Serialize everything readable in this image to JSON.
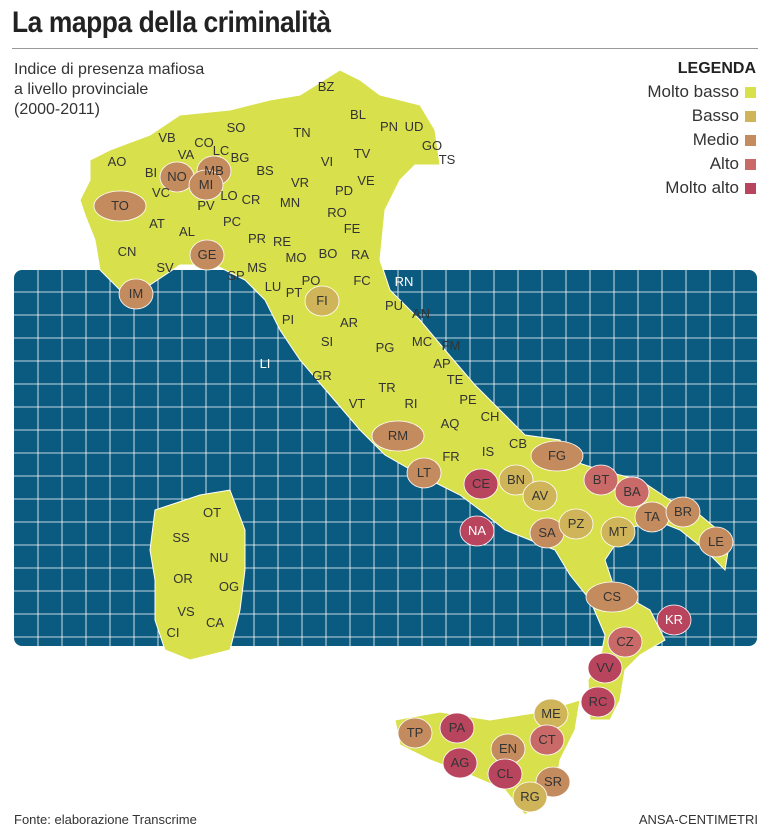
{
  "title": "La mappa della criminalità",
  "subtitle": [
    "Indice di presenza mafiosa",
    "a livello provinciale",
    "(2000-2011)"
  ],
  "legend": {
    "title": "LEGENDA",
    "items": [
      {
        "label": "Molto basso",
        "color": "#d8e04c"
      },
      {
        "label": "Basso",
        "color": "#d0b45a"
      },
      {
        "label": "Medio",
        "color": "#c48c5e"
      },
      {
        "label": "Alto",
        "color": "#c96a68"
      },
      {
        "label": "Molto alto",
        "color": "#b8445e"
      }
    ]
  },
  "colors": {
    "sea": "#0b5b80",
    "grid": "#ffffff",
    "land": "#d8e04c",
    "border": "#ffffff"
  },
  "provinces": [
    {
      "code": "BZ",
      "level": 0
    },
    {
      "code": "BL",
      "level": 0
    },
    {
      "code": "TN",
      "level": 0
    },
    {
      "code": "PN",
      "level": 0
    },
    {
      "code": "UD",
      "level": 0
    },
    {
      "code": "GO",
      "level": 0
    },
    {
      "code": "TS",
      "level": 0
    },
    {
      "code": "SO",
      "level": 0
    },
    {
      "code": "VB",
      "level": 0
    },
    {
      "code": "CO",
      "level": 0
    },
    {
      "code": "LC",
      "level": 0
    },
    {
      "code": "BG",
      "level": 0
    },
    {
      "code": "BS",
      "level": 0
    },
    {
      "code": "VI",
      "level": 0
    },
    {
      "code": "TV",
      "level": 0
    },
    {
      "code": "AO",
      "level": 0
    },
    {
      "code": "BI",
      "level": 0
    },
    {
      "code": "VA",
      "level": 0
    },
    {
      "code": "NO",
      "level": 2
    },
    {
      "code": "MB",
      "level": 2
    },
    {
      "code": "MI",
      "level": 2
    },
    {
      "code": "VR",
      "level": 0
    },
    {
      "code": "PD",
      "level": 0
    },
    {
      "code": "VE",
      "level": 0
    },
    {
      "code": "TO",
      "level": 2
    },
    {
      "code": "VC",
      "level": 0
    },
    {
      "code": "PV",
      "level": 0
    },
    {
      "code": "LO",
      "level": 0
    },
    {
      "code": "CR",
      "level": 0
    },
    {
      "code": "MN",
      "level": 0
    },
    {
      "code": "RO",
      "level": 0
    },
    {
      "code": "AT",
      "level": 0
    },
    {
      "code": "AL",
      "level": 0
    },
    {
      "code": "PC",
      "level": 0
    },
    {
      "code": "PR",
      "level": 0
    },
    {
      "code": "RE",
      "level": 0
    },
    {
      "code": "MO",
      "level": 0
    },
    {
      "code": "BO",
      "level": 0
    },
    {
      "code": "FE",
      "level": 0
    },
    {
      "code": "RA",
      "level": 0
    },
    {
      "code": "CN",
      "level": 0
    },
    {
      "code": "GE",
      "level": 2
    },
    {
      "code": "SV",
      "level": 0
    },
    {
      "code": "SP",
      "level": 0
    },
    {
      "code": "IM",
      "level": 2
    },
    {
      "code": "MS",
      "level": 0
    },
    {
      "code": "LU",
      "level": 0
    },
    {
      "code": "PT",
      "level": 0
    },
    {
      "code": "PO",
      "level": 0
    },
    {
      "code": "FI",
      "level": 1
    },
    {
      "code": "FC",
      "level": 0
    },
    {
      "code": "RN",
      "level": 0
    },
    {
      "code": "PI",
      "level": 0
    },
    {
      "code": "LI",
      "level": 0
    },
    {
      "code": "AR",
      "level": 0
    },
    {
      "code": "PU",
      "level": 0
    },
    {
      "code": "AN",
      "level": 0
    },
    {
      "code": "SI",
      "level": 0
    },
    {
      "code": "PG",
      "level": 0
    },
    {
      "code": "MC",
      "level": 0
    },
    {
      "code": "FM",
      "level": 0
    },
    {
      "code": "AP",
      "level": 0
    },
    {
      "code": "GR",
      "level": 0
    },
    {
      "code": "TR",
      "level": 0
    },
    {
      "code": "TE",
      "level": 0
    },
    {
      "code": "VT",
      "level": 0
    },
    {
      "code": "RI",
      "level": 0
    },
    {
      "code": "PE",
      "level": 0
    },
    {
      "code": "CH",
      "level": 0
    },
    {
      "code": "AQ",
      "level": 0
    },
    {
      "code": "RM",
      "level": 2
    },
    {
      "code": "FR",
      "level": 0
    },
    {
      "code": "IS",
      "level": 0
    },
    {
      "code": "CB",
      "level": 0
    },
    {
      "code": "LT",
      "level": 2
    },
    {
      "code": "CE",
      "level": 4
    },
    {
      "code": "BN",
      "level": 1
    },
    {
      "code": "AV",
      "level": 1
    },
    {
      "code": "FG",
      "level": 2
    },
    {
      "code": "NA",
      "level": 4
    },
    {
      "code": "SA",
      "level": 2
    },
    {
      "code": "PZ",
      "level": 1
    },
    {
      "code": "MT",
      "level": 1
    },
    {
      "code": "BT",
      "level": 3
    },
    {
      "code": "BA",
      "level": 3
    },
    {
      "code": "TA",
      "level": 2
    },
    {
      "code": "BR",
      "level": 2
    },
    {
      "code": "LE",
      "level": 2
    },
    {
      "code": "CS",
      "level": 2
    },
    {
      "code": "KR",
      "level": 4
    },
    {
      "code": "CZ",
      "level": 3
    },
    {
      "code": "VV",
      "level": 4
    },
    {
      "code": "RC",
      "level": 4
    },
    {
      "code": "TP",
      "level": 2
    },
    {
      "code": "PA",
      "level": 4
    },
    {
      "code": "ME",
      "level": 1
    },
    {
      "code": "EN",
      "level": 2
    },
    {
      "code": "CT",
      "level": 3
    },
    {
      "code": "AG",
      "level": 4
    },
    {
      "code": "CL",
      "level": 4
    },
    {
      "code": "SR",
      "level": 2
    },
    {
      "code": "RG",
      "level": 1
    },
    {
      "code": "OT",
      "level": 0
    },
    {
      "code": "SS",
      "level": 0
    },
    {
      "code": "NU",
      "level": 0
    },
    {
      "code": "OR",
      "level": 0
    },
    {
      "code": "OG",
      "level": 0
    },
    {
      "code": "VS",
      "level": 0
    },
    {
      "code": "CA",
      "level": 0
    },
    {
      "code": "CI",
      "level": 0
    }
  ],
  "source": "Fonte: elaborazione Transcrime",
  "credit": "ANSA-CENTIMETRI"
}
